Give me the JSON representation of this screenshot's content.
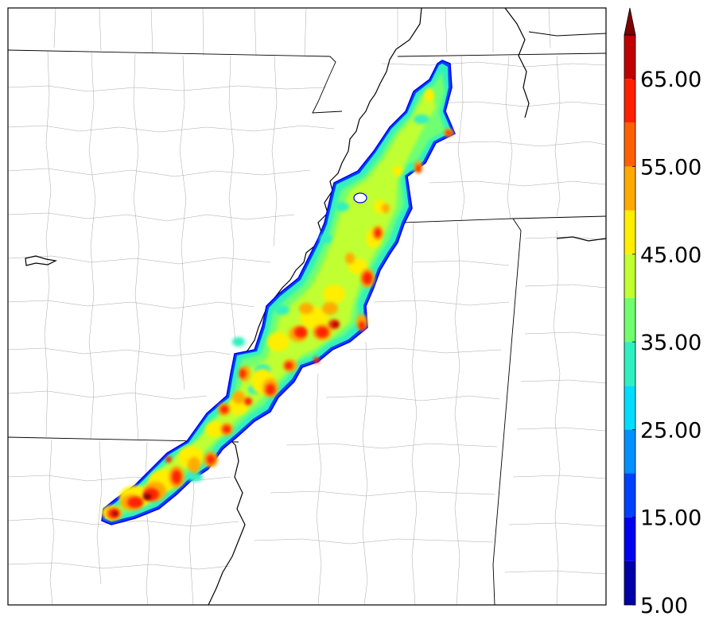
{
  "colorbar": {
    "ticks": [
      {
        "value": 5,
        "label": "5.00"
      },
      {
        "value": 15,
        "label": "15.00"
      },
      {
        "value": 25,
        "label": "25.00"
      },
      {
        "value": 35,
        "label": "35.00"
      },
      {
        "value": 45,
        "label": "45.00"
      },
      {
        "value": 55,
        "label": "55.00"
      },
      {
        "value": 65,
        "label": "65.00"
      }
    ],
    "levels": [
      5,
      10,
      15,
      20,
      25,
      30,
      35,
      40,
      45,
      50,
      55,
      60,
      65,
      70
    ],
    "colors": [
      "#0000a8",
      "#0000f0",
      "#0040ff",
      "#0090ff",
      "#00ddff",
      "#30f0c0",
      "#70ff70",
      "#c0ff30",
      "#ffee00",
      "#ffaa00",
      "#ff6000",
      "#ff2000",
      "#c00000",
      "#800000"
    ],
    "extend": "max"
  }
}
